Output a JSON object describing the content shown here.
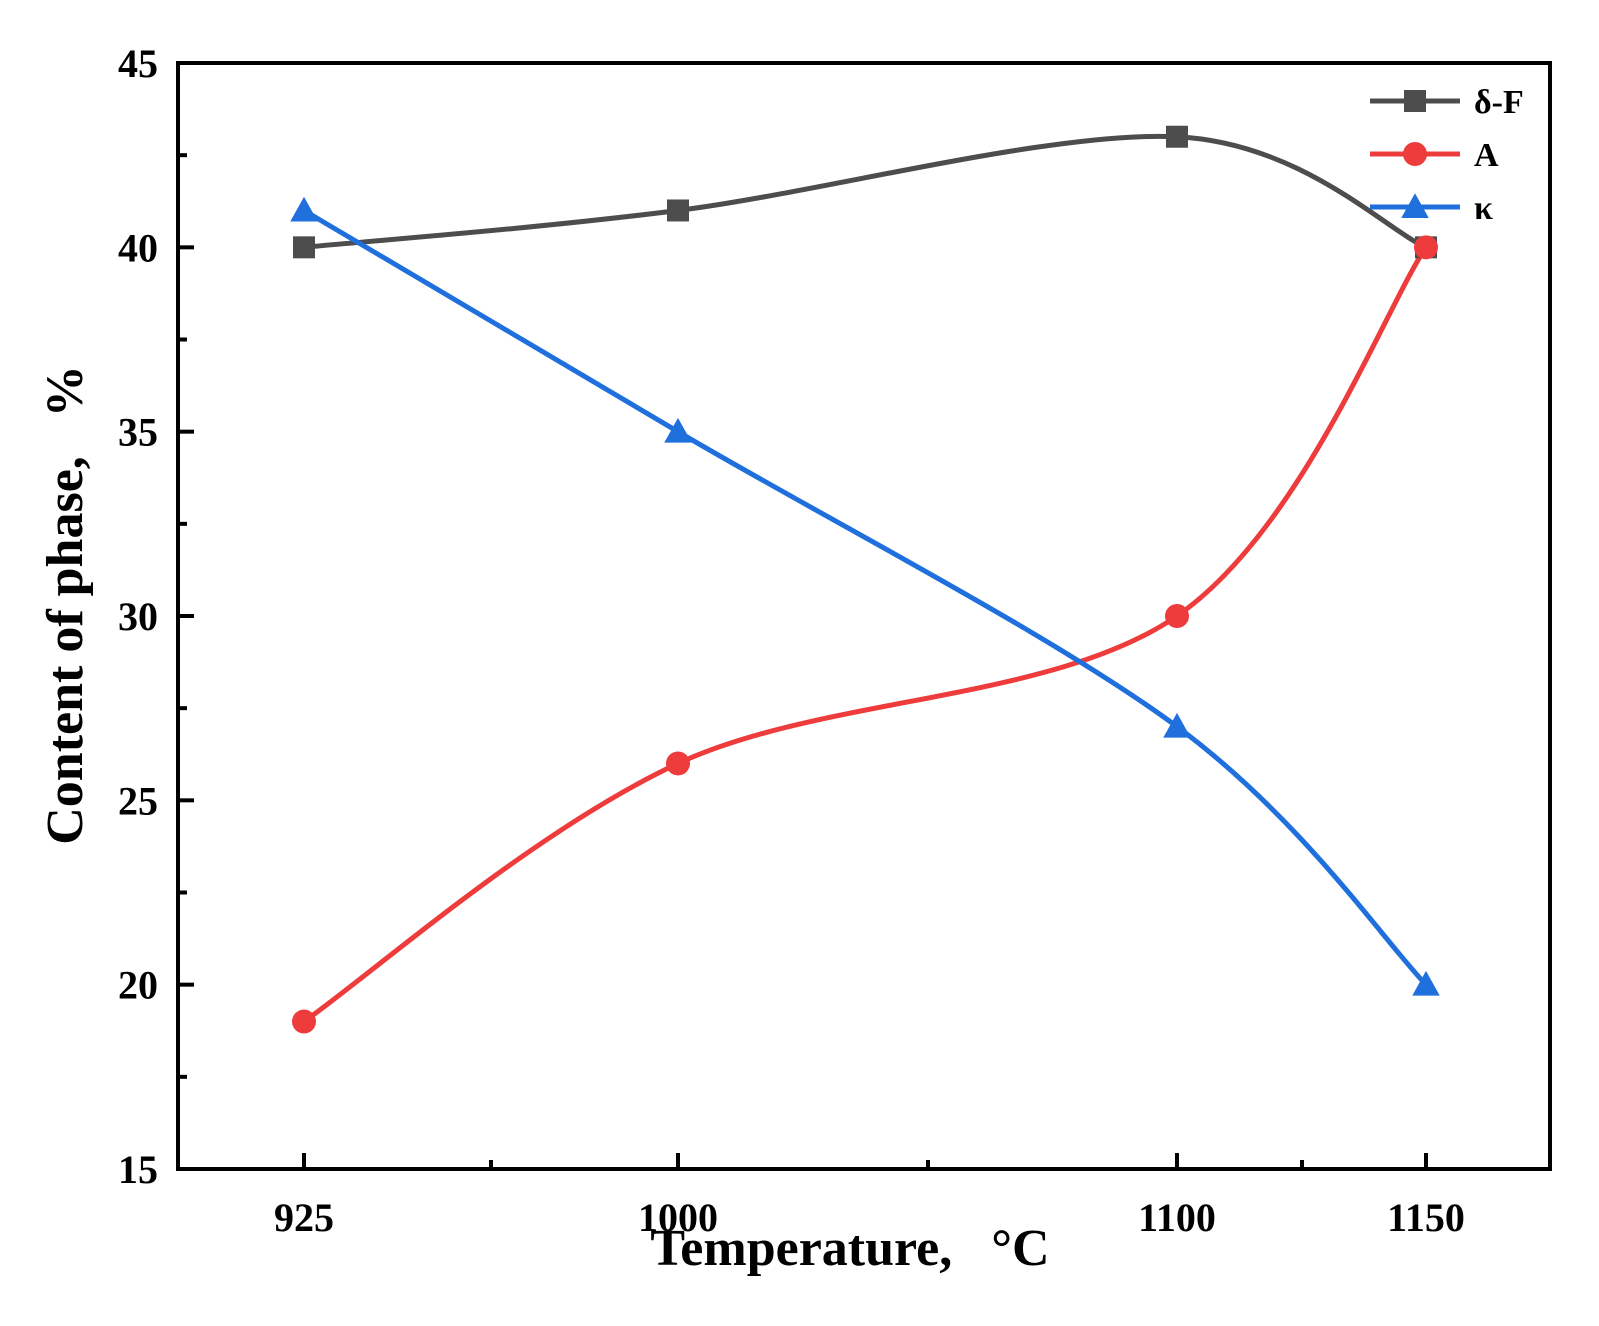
{
  "chart_data": {
    "type": "line",
    "title": "",
    "xlabel": "Temperature,   °C",
    "ylabel": "Content of phase,   %",
    "x": [
      925,
      1000,
      1100,
      1150
    ],
    "x_tick_labels": [
      "925",
      "1000",
      "1100",
      "1150"
    ],
    "ylim": [
      15,
      45
    ],
    "y_ticks": [
      15,
      20,
      25,
      30,
      35,
      40,
      45
    ],
    "y_tick_labels": [
      "15",
      "20",
      "25",
      "30",
      "35",
      "40",
      "45"
    ],
    "grid": false,
    "legend_position": "top-right",
    "series": [
      {
        "name": "δ-F",
        "values": [
          40,
          41,
          43,
          40
        ],
        "color": "#4d4d4d",
        "marker": "square"
      },
      {
        "name": "A",
        "values": [
          19,
          26,
          30,
          40
        ],
        "color": "#ee3b3b",
        "marker": "circle"
      },
      {
        "name": "κ",
        "values": [
          41,
          35,
          27,
          20
        ],
        "color": "#1f6fdc",
        "marker": "triangle"
      }
    ]
  }
}
